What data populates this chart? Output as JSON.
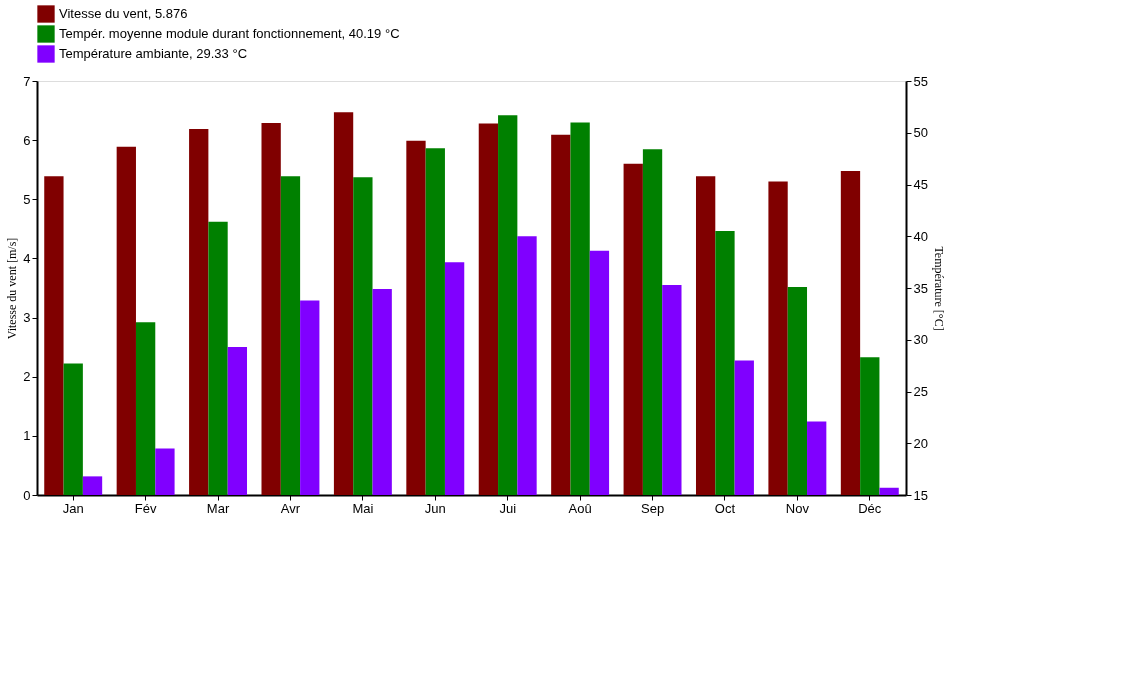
{
  "chart_data": {
    "type": "bar",
    "categories": [
      "Jan",
      "Fév",
      "Mar",
      "Avr",
      "Mai",
      "Jun",
      "Jui",
      "Aoû",
      "Sep",
      "Oct",
      "Nov",
      "Déc"
    ],
    "ylabel": "Vitesse du vent  [m/s]",
    "y2label": "Température  [°C]",
    "ylim": [
      0,
      7
    ],
    "yticks": [
      0,
      1,
      2,
      3,
      4,
      5,
      6,
      7
    ],
    "y2lim": [
      15,
      55
    ],
    "y2ticks": [
      15,
      20,
      25,
      30,
      35,
      40,
      45,
      50,
      55
    ],
    "grid": false,
    "legend": "top left",
    "series": [
      {
        "name": "Vitesse du vent, 5.876",
        "color": "#800000",
        "values": [
          5.39,
          5.89,
          6.19,
          6.29,
          6.47,
          5.99,
          6.28,
          6.09,
          5.6,
          5.39,
          5.3,
          5.48
        ]
      },
      {
        "name": "Tempér. moyenne module durant fonctionnement, 40.19 °C",
        "color": "#008000",
        "axis": "y2",
        "values": [
          27.7,
          31.7,
          41.4,
          45.8,
          45.7,
          48.5,
          51.7,
          51.0,
          48.4,
          40.5,
          35.1,
          28.3
        ]
      },
      {
        "name": "Température ambiante, 29.33 °C",
        "color": "#8000ff",
        "axis": "y2",
        "values": [
          16.8,
          19.5,
          29.3,
          33.8,
          34.9,
          37.5,
          40.0,
          38.6,
          35.3,
          28.0,
          22.1,
          15.7
        ]
      }
    ]
  }
}
